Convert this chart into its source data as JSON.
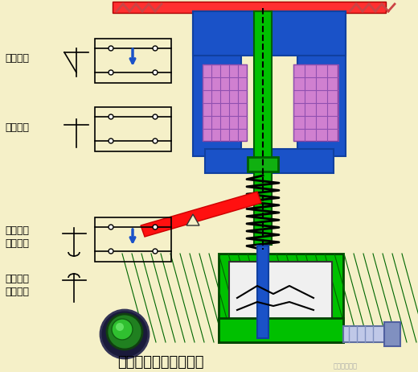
{
  "title": "断电延时型时间继电器",
  "bg_color": "#f5f0c8",
  "title_fontsize": 13,
  "labels": {
    "instant_nc": "瞬动常闭",
    "instant_no": "瞬动常开",
    "delay_no": "延时断开\n常开触头",
    "delay_nc": "延时闭合\n常闭触头"
  },
  "colors": {
    "blue": "#1a52c8",
    "blue_dark": "#1040a0",
    "green": "#00c000",
    "green_dark": "#008000",
    "green_fill": "#20c020",
    "red": "#ff0000",
    "purple": "#c060c0",
    "purple_light": "#d080d0",
    "gray": "#888888",
    "black": "#000000",
    "white": "#ffffff",
    "light_blue": "#a0b8e0",
    "lavender": "#c0c8e8",
    "coil_red": "#ff2020",
    "spring_black": "#000000",
    "dashed": "#000000"
  }
}
